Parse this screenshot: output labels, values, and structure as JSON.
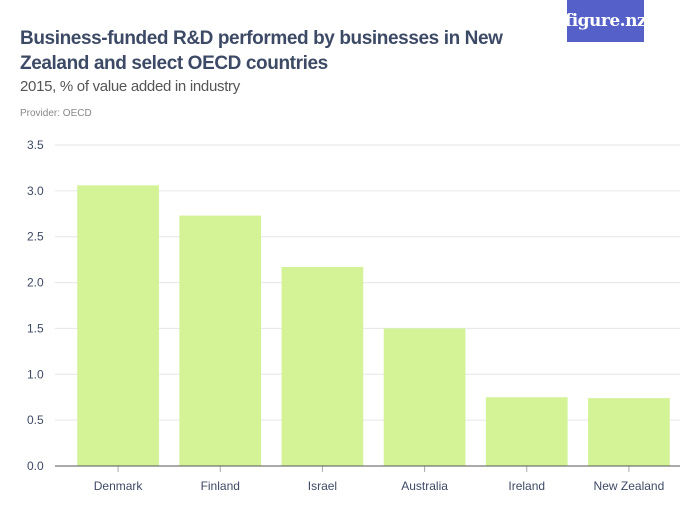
{
  "header": {
    "title": "Business-funded R&D performed by businesses in New Zealand and select OECD countries",
    "subtitle": "2015, % of value added in industry",
    "provider": "Provider: OECD",
    "logo": "figure.nz"
  },
  "colors": {
    "bar": "#d4f397",
    "grid": "#e6e6e6",
    "axis": "#555555",
    "logo_bg": "#5560c8"
  },
  "chart_data": {
    "type": "bar",
    "title": "Business-funded R&D performed by businesses in New Zealand and select OECD countries",
    "subtitle": "2015, % of value added in industry",
    "categories": [
      "Denmark",
      "Finland",
      "Israel",
      "Australia",
      "Ireland",
      "New Zealand"
    ],
    "values": [
      3.06,
      2.73,
      2.17,
      1.5,
      0.75,
      0.74
    ],
    "xlabel": "",
    "ylabel": "",
    "ylim": [
      0,
      3.5
    ],
    "yticks": [
      "0.0",
      "0.5",
      "1.0",
      "1.5",
      "2.0",
      "2.5",
      "3.0",
      "3.5"
    ],
    "grid": true
  }
}
